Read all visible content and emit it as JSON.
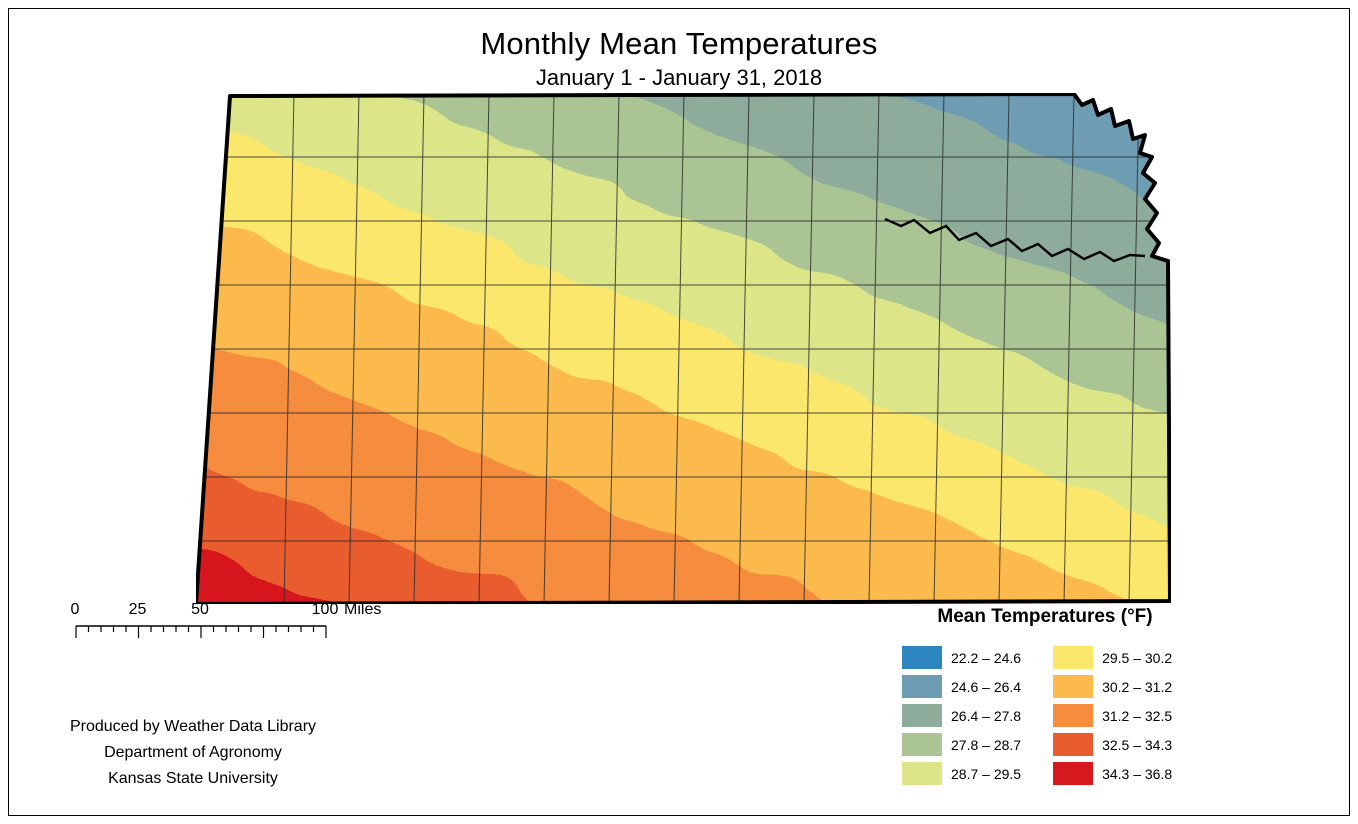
{
  "title": "Monthly Mean Temperatures",
  "subtitle": "January 1 - January 31, 2018",
  "legend": {
    "title": "Mean Temperatures (°F)",
    "columns": [
      [
        {
          "label": "22.2 – 24.6",
          "color": "#2e86c1"
        },
        {
          "label": "24.6 – 26.4",
          "color": "#6d9cb3"
        },
        {
          "label": "26.4 – 27.8",
          "color": "#8dac9c"
        },
        {
          "label": "27.8 – 28.7",
          "color": "#aac493"
        },
        {
          "label": "28.7 – 29.5",
          "color": "#dce689"
        }
      ],
      [
        {
          "label": "29.5 – 30.2",
          "color": "#fce76d"
        },
        {
          "label": "30.2 – 31.2",
          "color": "#fbba4b"
        },
        {
          "label": "31.2 – 32.5",
          "color": "#f68c3e"
        },
        {
          "label": "32.5 – 34.3",
          "color": "#e85c2e"
        },
        {
          "label": "34.3 – 36.8",
          "color": "#d6191f"
        }
      ]
    ]
  },
  "scalebar": {
    "tick_labels": [
      "0",
      "25",
      "50",
      "100"
    ],
    "unit": "Miles"
  },
  "credits": [
    "Produced by Weather Data Library",
    "Department of Agronomy",
    "Kansas State University"
  ]
}
